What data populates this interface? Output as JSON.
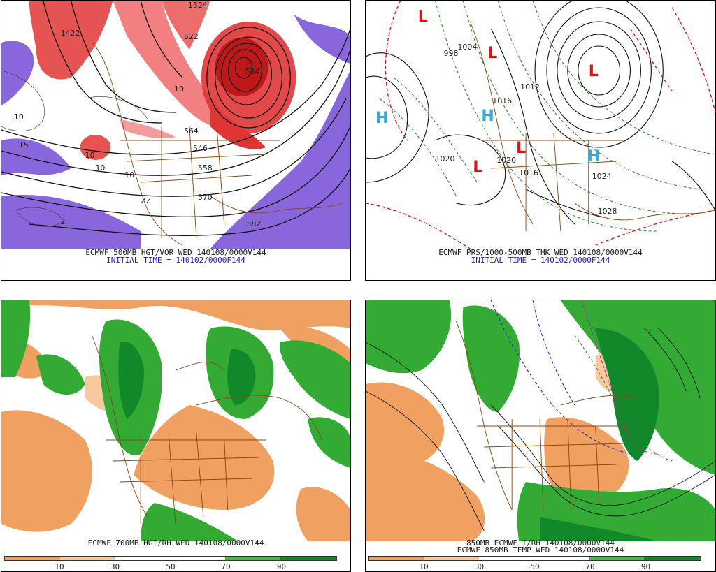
{
  "panels": {
    "tl": {
      "caption1": "ECMWF 500MB HGT/VOR WED 140108/0000V144",
      "caption2": "INITIAL TIME = 140102/0000F144",
      "labels": [
        "1422",
        "15",
        "10",
        "10",
        "564",
        "546",
        "558",
        "570",
        "582",
        "534",
        "522",
        "2",
        "10",
        "10",
        "10",
        "1524",
        "ZZ"
      ]
    },
    "tr": {
      "caption1": "ECMWF PRS/1000-500MB THK WED 140108/0000V144",
      "caption2": "INITIAL TIME = 140102/0000F144",
      "labels": [
        "1020",
        "1020",
        "1016",
        "1016",
        "1028",
        "1024",
        "998",
        "1004",
        "1012"
      ]
    },
    "bl": {
      "caption1": "ECMWF 700MB HGT/RH WED 140108/0000V144"
    },
    "br": {
      "caption1": "850MB ECMWF T/RH 140108/0000V144",
      "caption2": "ECMWF 850MB TEMP WED 140108/0000V144"
    }
  },
  "pressure_centers": {
    "tr": [
      {
        "type": "L",
        "color": "#dd1111"
      },
      {
        "type": "L",
        "color": "#dd1111"
      },
      {
        "type": "L",
        "color": "#dd1111"
      },
      {
        "type": "L",
        "color": "#dd1111"
      },
      {
        "type": "L",
        "color": "#dd1111"
      },
      {
        "type": "H",
        "color": "#33aadd"
      },
      {
        "type": "H",
        "color": "#33aadd"
      },
      {
        "type": "H",
        "color": "#33aadd"
      }
    ]
  },
  "legend": {
    "ticks": [
      "10",
      "30",
      "50",
      "70",
      "90"
    ],
    "colors": [
      "#f0a060",
      "#f8c8a0",
      "#ffffff",
      "#ffffff",
      "#44bb44",
      "#11882a"
    ]
  },
  "colors": {
    "vorticity_red": "#e03535",
    "vorticity_purple": "#8a66dd",
    "dry_orange": "#f0a060",
    "moist_green": "#33aa33",
    "border_brown": "#8b4513"
  }
}
